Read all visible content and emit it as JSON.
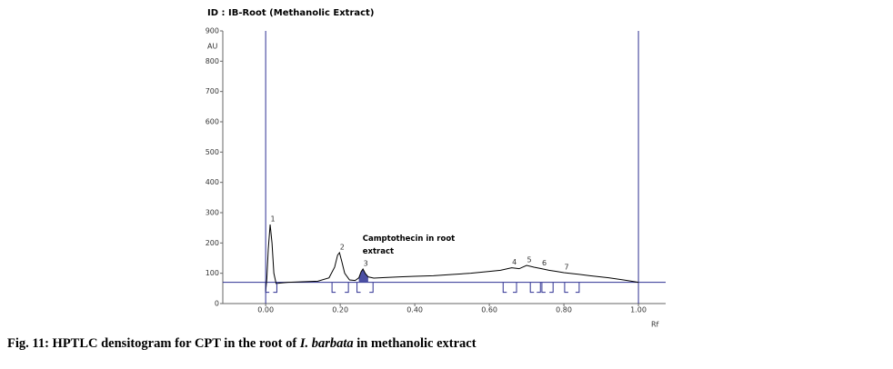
{
  "chart_data": {
    "type": "line",
    "title": "ID : IB-Root (Methanolic Extract)",
    "xlabel": "Rf",
    "ylabel": "AU",
    "xlim": [
      -0.115,
      1.073
    ],
    "ylim": [
      0,
      900
    ],
    "xticks": [
      {
        "value": 0,
        "label": "0.00"
      },
      {
        "value": 0.2,
        "label": "0.20"
      },
      {
        "value": 0.4,
        "label": "0.40"
      },
      {
        "value": 0.6,
        "label": "0.60"
      },
      {
        "value": 0.8,
        "label": "0.80"
      },
      {
        "value": 1,
        "label": "1.00"
      }
    ],
    "yticks": [
      0,
      100,
      200,
      300,
      400,
      500,
      600,
      700,
      800,
      900
    ],
    "baseline": 70,
    "baseline_color": "#2e3192",
    "vlines": [
      0,
      1
    ],
    "series": [
      {
        "color": "#000000",
        "x": [
          0,
          0.003,
          0.007,
          0.012,
          0.017,
          0.022,
          0.028,
          0.04,
          0.06,
          0.1,
          0.14,
          0.17,
          0.185,
          0.193,
          0.198,
          0.204,
          0.212,
          0.225,
          0.24,
          0.25,
          0.256,
          0.261,
          0.267,
          0.275,
          0.29,
          0.32,
          0.36,
          0.4,
          0.45,
          0.5,
          0.55,
          0.6,
          0.63,
          0.66,
          0.68,
          0.7,
          0.72,
          0.74,
          0.76,
          0.78,
          0.8,
          0.83,
          0.87,
          0.92,
          0.96,
          1.0
        ],
        "values": [
          40,
          80,
          180,
          261,
          200,
          100,
          66,
          68,
          70,
          72,
          74,
          85,
          120,
          160,
          168,
          140,
          100,
          78,
          76,
          85,
          105,
          114,
          100,
          88,
          84,
          86,
          88,
          90,
          92,
          96,
          100,
          106,
          110,
          118,
          115,
          126,
          120,
          115,
          110,
          106,
          102,
          98,
          92,
          85,
          78,
          70
        ]
      }
    ],
    "peaks": [
      {
        "label": "1",
        "x": 0.012,
        "y": 261,
        "start": 0.0,
        "end": 0.03
      },
      {
        "label": "2",
        "x": 0.198,
        "y": 168,
        "start": 0.178,
        "end": 0.222
      },
      {
        "label": "3",
        "x": 0.261,
        "y": 114,
        "start": 0.245,
        "end": 0.288,
        "shaded": true
      },
      {
        "label": "4",
        "x": 0.66,
        "y": 118,
        "start": 0.637,
        "end": 0.673
      },
      {
        "label": "5",
        "x": 0.7,
        "y": 126,
        "start": 0.71,
        "end": 0.737
      },
      {
        "label": "6",
        "x": 0.74,
        "y": 115,
        "start": 0.741,
        "end": 0.771
      },
      {
        "label": "7",
        "x": 0.8,
        "y": 102,
        "start": 0.802,
        "end": 0.841
      }
    ],
    "shade_color": "#4b4fa3",
    "annotation": {
      "lines": [
        "Camptothecin in root",
        "extract"
      ],
      "x": 0.26,
      "y": 215
    },
    "caption": [
      "Fig. 11: HPTLC densitogram for CPT in the root of ",
      "I. barbata",
      " in methanolic extract"
    ]
  }
}
